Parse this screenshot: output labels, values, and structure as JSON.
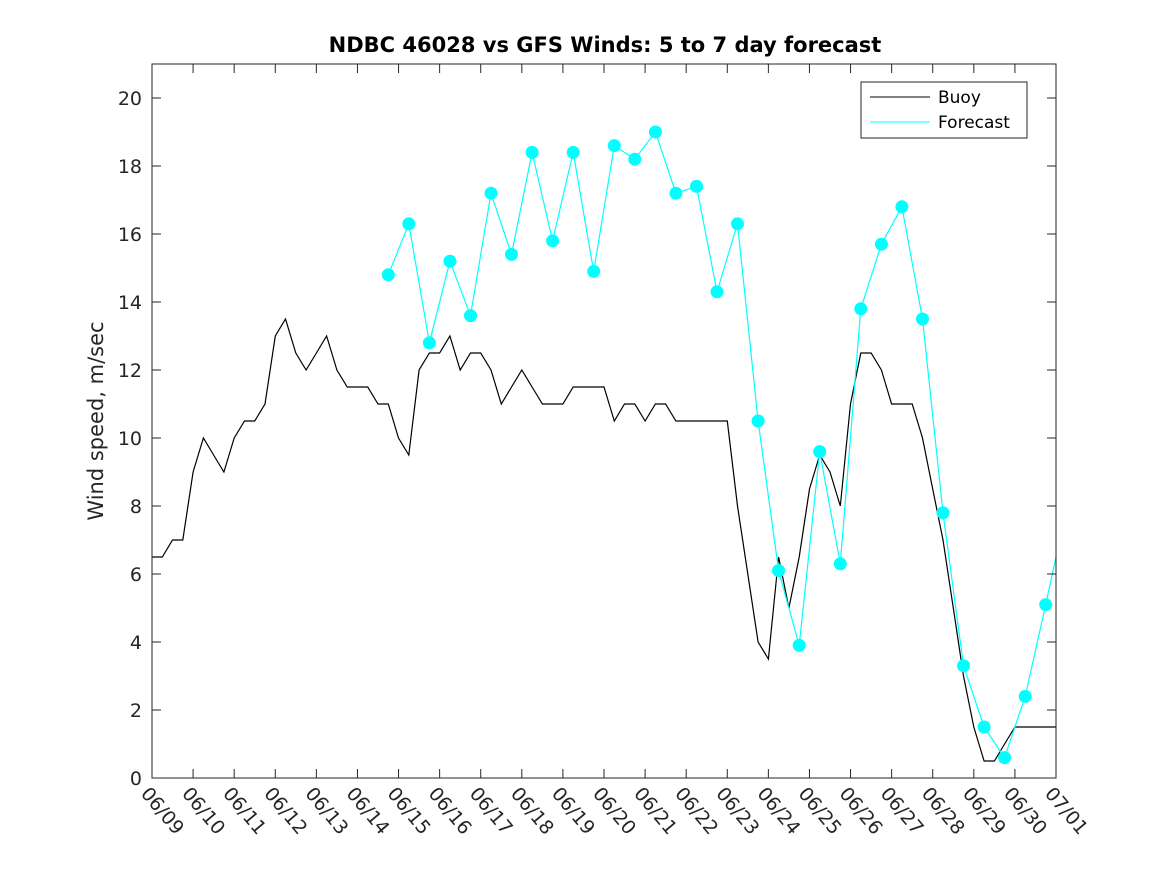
{
  "chart_data": {
    "type": "line",
    "title": "NDBC 46028 vs GFS Winds: 5 to 7 day forecast",
    "xlabel": "",
    "ylabel": "Wind speed, m/sec",
    "x_tick_labels": [
      "06/09",
      "06/10",
      "06/11",
      "06/12",
      "06/13",
      "06/14",
      "06/15",
      "06/16",
      "06/17",
      "06/18",
      "06/19",
      "06/20",
      "06/21",
      "06/22",
      "06/23",
      "06/24",
      "06/25",
      "06/26",
      "06/27",
      "06/28",
      "06/29",
      "06/30",
      "07/01"
    ],
    "x_range_days": [
      0,
      22
    ],
    "ylim": [
      0,
      21
    ],
    "y_ticks": [
      0,
      2,
      4,
      6,
      8,
      10,
      12,
      14,
      16,
      18,
      20
    ],
    "grid": false,
    "legend": {
      "position": "top-right",
      "entries": [
        "Buoy",
        "Forecast"
      ]
    },
    "colors": {
      "buoy": "#000000",
      "forecast": "#00ffff",
      "forecast_marker": "#00ffff"
    },
    "series": [
      {
        "name": "Buoy",
        "x_days": [
          0,
          0.25,
          0.5,
          0.75,
          1,
          1.25,
          1.5,
          1.75,
          2,
          2.25,
          2.5,
          2.75,
          3,
          3.25,
          3.5,
          3.75,
          4,
          4.25,
          4.5,
          4.75,
          5,
          5.25,
          5.5,
          5.75,
          6,
          6.25,
          6.5,
          6.75,
          7,
          7.25,
          7.5,
          7.75,
          8,
          8.25,
          8.5,
          8.75,
          9,
          9.25,
          9.5,
          9.75,
          10,
          10.25,
          10.5,
          10.75,
          11,
          11.25,
          11.5,
          11.75,
          12,
          12.25,
          12.5,
          12.75,
          13,
          13.25,
          13.5,
          13.75,
          14,
          14.25,
          14.5,
          14.75,
          15,
          15.25,
          15.5,
          15.75,
          16,
          16.25,
          16.5,
          16.75,
          17,
          17.25,
          17.5,
          17.75,
          18,
          18.25,
          18.5,
          18.75,
          19,
          19.25,
          19.5,
          19.75,
          20,
          20.25,
          20.5,
          20.75,
          21,
          21.25,
          21.5,
          21.75,
          22
        ],
        "values": [
          6.5,
          6.5,
          7,
          7,
          9,
          10,
          9.5,
          9,
          10,
          10.5,
          10.5,
          11,
          13,
          13.5,
          12.5,
          12,
          12.5,
          13,
          12,
          11.5,
          11.5,
          11.5,
          11,
          11,
          10,
          9.5,
          12,
          12.5,
          12.5,
          13,
          12,
          12.5,
          12.5,
          12,
          11,
          11.5,
          12,
          11.5,
          11,
          11,
          11,
          11.5,
          11.5,
          11.5,
          11.5,
          10.5,
          11,
          11,
          10.5,
          11,
          11,
          10.5,
          10.5,
          10.5,
          10.5,
          10.5,
          10.5,
          8,
          6,
          4,
          3.5,
          6.5,
          5,
          6.5,
          8.5,
          9.5,
          9,
          8,
          11,
          12.5,
          12.5,
          12,
          11,
          11,
          11,
          10,
          8.5,
          7,
          5,
          3,
          1.5,
          0.5,
          0.5,
          1,
          1.5,
          1.5,
          1.5,
          1.5,
          1.5
        ]
      },
      {
        "name": "Forecast",
        "x_days": [
          5.75,
          6.25,
          6.75,
          7.25,
          7.75,
          8.25,
          8.75,
          9.25,
          9.75,
          10.25,
          10.75,
          11.25,
          11.75,
          12.25,
          12.75,
          13.25,
          13.75,
          14.25,
          14.75,
          15.25,
          15.75,
          16.25,
          16.75,
          17.25,
          17.75,
          18.25,
          18.75,
          19.25,
          19.75,
          20.25,
          20.75,
          21.25,
          21.75,
          22
        ],
        "values": [
          14.8,
          16.3,
          12.8,
          15.2,
          13.6,
          17.2,
          15.4,
          18.4,
          15.8,
          18.4,
          14.9,
          18.6,
          18.2,
          19,
          17.2,
          17.4,
          14.3,
          16.3,
          10.5,
          6.1,
          3.9,
          9.6,
          6.3,
          13.8,
          15.7,
          16.8,
          13.5,
          7.8,
          3.3,
          1.5,
          0.6,
          2.4,
          5.1,
          6.5
        ]
      }
    ],
    "marker_points": {
      "x_days": [
        5.75,
        6.25,
        6.75,
        7.25,
        7.75,
        8.25,
        8.75,
        9.25,
        9.75,
        10.25,
        10.75,
        11.25,
        11.75,
        12.25,
        12.75,
        13.25,
        13.75,
        14.25,
        14.75,
        15.25,
        15.75,
        16.25,
        16.75,
        17.25,
        17.75,
        18.25,
        18.75,
        19.25,
        19.75,
        20.25,
        20.75,
        21.25,
        21.75
      ],
      "values": [
        14.8,
        16.3,
        12.8,
        15.2,
        13.6,
        17.2,
        15.4,
        18.4,
        15.8,
        18.4,
        14.9,
        18.6,
        18.2,
        19,
        17.2,
        17.4,
        14.3,
        16.3,
        10.5,
        6.1,
        3.9,
        9.6,
        6.3,
        13.8,
        15.7,
        16.8,
        13.5,
        7.8,
        3.3,
        1.5,
        0.6,
        2.4,
        5.1
      ]
    }
  }
}
